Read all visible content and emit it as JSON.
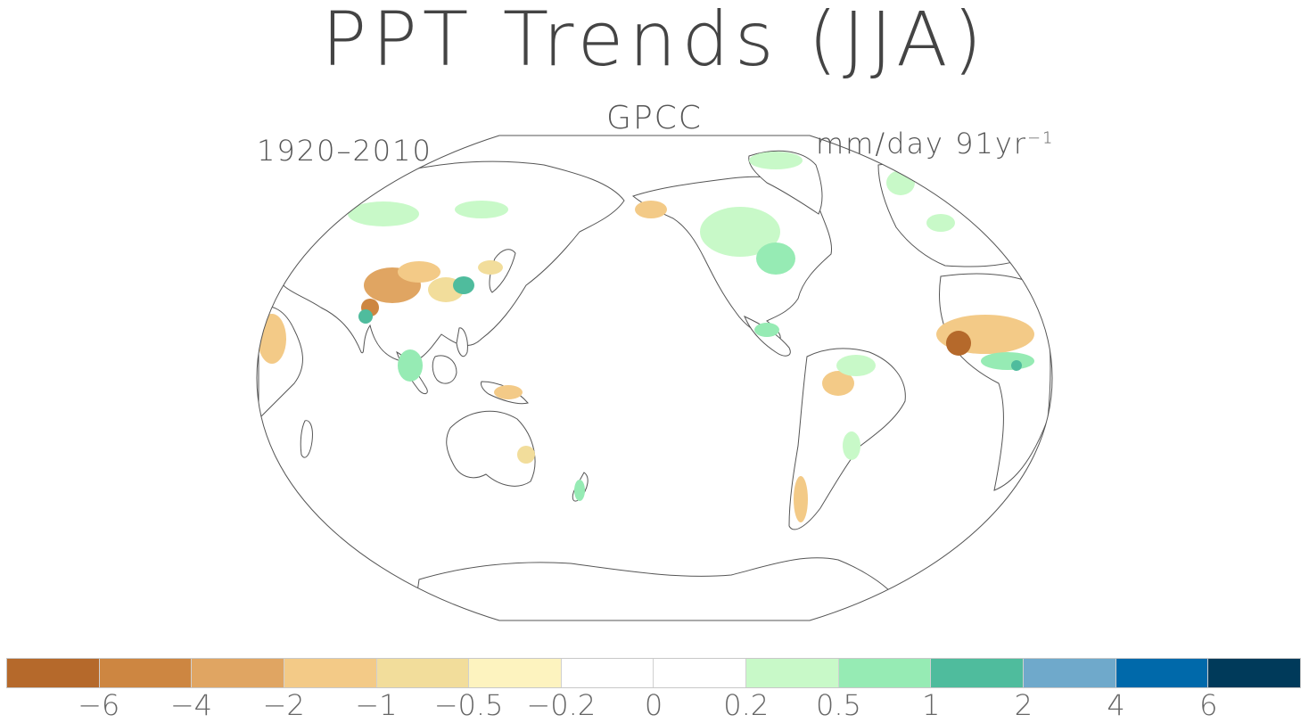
{
  "title": "PPT Trends (JJA)",
  "subtitle": "GPCC",
  "period": "1920–2010",
  "units_main": "mm/day 91yr",
  "units_sup": "−1",
  "colorbar": {
    "colors": [
      "#b5692b",
      "#cd8641",
      "#e0a562",
      "#f3ca87",
      "#f2dd9b",
      "#fdf3bf",
      "#ffffff",
      "#ffffff",
      "#c8f9c8",
      "#96ebb4",
      "#4fbc9d",
      "#6fa9cb",
      "#0069aa",
      "#003a5a"
    ],
    "tick_labels": [
      "−6",
      "−4",
      "−2",
      "−1",
      "−0.5",
      "−0.2",
      "0",
      "0.2",
      "0.5",
      "1",
      "2",
      "4",
      "6"
    ]
  },
  "legend": {
    "dry_colors": [
      "#e0a562",
      "#f3ca87",
      "#f2dd9b"
    ],
    "wet_colors": [
      "#c8f9c8",
      "#96ebb4",
      "#4fbc9d"
    ],
    "strong_dry": "#b5692b",
    "coast_color": "#555555"
  }
}
